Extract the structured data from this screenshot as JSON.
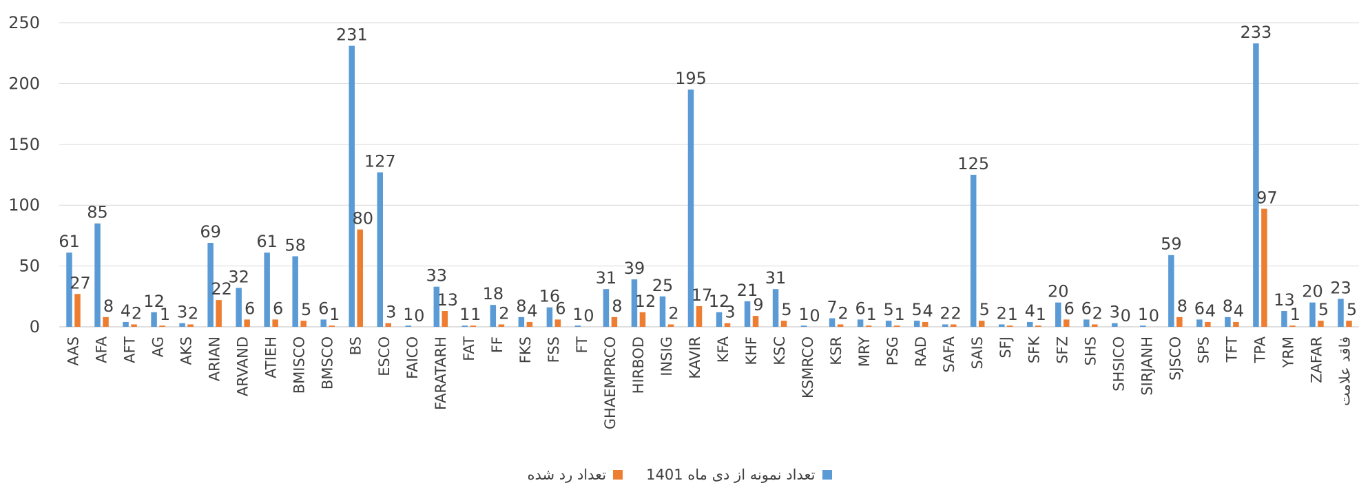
{
  "chart_data": {
    "type": "bar",
    "title": "",
    "xlabel": "",
    "ylabel": "",
    "ylim": [
      0,
      250
    ],
    "yticks": [
      0,
      50,
      100,
      150,
      200,
      250
    ],
    "grid": true,
    "legend_position": "bottom",
    "categories": [
      "AAS",
      "AFA",
      "AFT",
      "AG",
      "AKS",
      "ARIAN",
      "ARVAND",
      "ATIEH",
      "BMISCO",
      "BMSCO",
      "BS",
      "ESCO",
      "FAICO",
      "FARATARH",
      "FAT",
      "FF",
      "FKS",
      "FSS",
      "FT",
      "GHAEMPRCO",
      "HIRBOD",
      "INSIG",
      "KAVIR",
      "KFA",
      "KHF",
      "KSC",
      "KSMRCO",
      "KSR",
      "MRY",
      "PSG",
      "RAD",
      "SAFA",
      "SAIS",
      "SFJ",
      "SFK",
      "SFZ",
      "SHS",
      "SHSICO",
      "SIRJANH",
      "SJSCO",
      "SPS",
      "TFT",
      "TPA",
      "YRM",
      "ZAFAR",
      "فاقد علامت"
    ],
    "series": [
      {
        "name": "تعداد نمونه از دی ماه 1401",
        "color": "#5B9BD5",
        "values": [
          61,
          85,
          4,
          12,
          3,
          69,
          32,
          61,
          58,
          6,
          231,
          127,
          1,
          33,
          1,
          18,
          8,
          16,
          1,
          31,
          39,
          25,
          195,
          12,
          21,
          31,
          1,
          7,
          6,
          5,
          5,
          2,
          125,
          2,
          4,
          20,
          6,
          3,
          1,
          59,
          6,
          8,
          233,
          13,
          20,
          23
        ]
      },
      {
        "name": "تعداد رد شده",
        "color": "#ED7D31",
        "values": [
          27,
          8,
          2,
          1,
          2,
          22,
          6,
          6,
          5,
          1,
          80,
          3,
          0,
          13,
          1,
          2,
          4,
          6,
          0,
          8,
          12,
          2,
          17,
          3,
          9,
          5,
          0,
          2,
          1,
          1,
          4,
          2,
          5,
          1,
          1,
          6,
          2,
          0,
          0,
          8,
          4,
          4,
          97,
          1,
          5,
          5
        ]
      }
    ]
  }
}
